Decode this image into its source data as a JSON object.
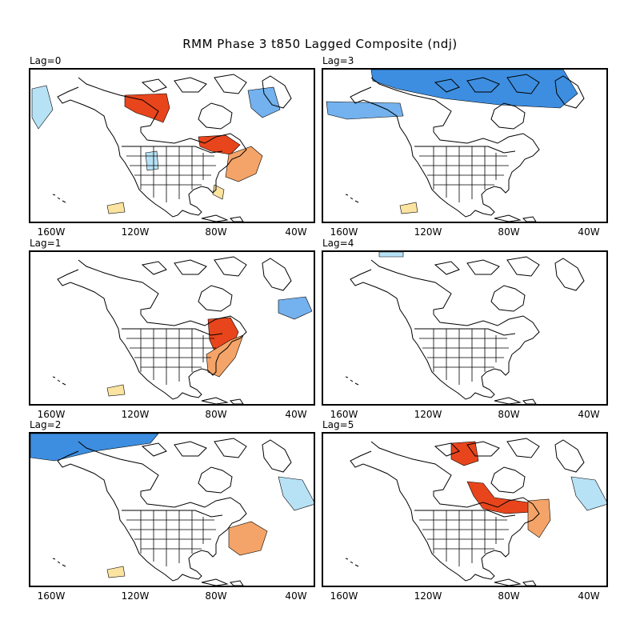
{
  "title": "RMM Phase 3 t850 Lagged Composite (ndj)",
  "x_tick_labels": [
    "160W",
    "120W",
    "80W",
    "40W"
  ],
  "colors": {
    "warm_strong": "#e8451c",
    "warm_moderate": "#f4a468",
    "warm_weak": "#fbe3a0",
    "cold_strong": "#3d8ee0",
    "cold_moderate": "#73b2ee",
    "cold_weak": "#b7e2f6"
  },
  "panels": [
    {
      "label": "Lag=0",
      "anomalies": [
        {
          "tone": "warm_strong",
          "region": "northern Canada (Northwest Territories)"
        },
        {
          "tone": "warm_strong",
          "region": "Great Lakes"
        },
        {
          "tone": "warm_moderate",
          "region": "western Atlantic off New England"
        },
        {
          "tone": "warm_weak",
          "region": "Florida / Bahamas"
        },
        {
          "tone": "warm_weak",
          "region": "eastern Pacific off Mexico"
        },
        {
          "tone": "cold_moderate",
          "region": "Hudson Bay / Labrador"
        },
        {
          "tone": "cold_weak",
          "region": "Gulf of Alaska"
        },
        {
          "tone": "cold_weak",
          "region": "interior western United States"
        }
      ]
    },
    {
      "label": "Lag=3",
      "anomalies": [
        {
          "tone": "cold_strong",
          "region": "Arctic Canada"
        },
        {
          "tone": "cold_moderate",
          "region": "Alaska"
        },
        {
          "tone": "warm_weak",
          "region": "eastern Pacific off Mexico"
        }
      ]
    },
    {
      "label": "Lag=1",
      "anomalies": [
        {
          "tone": "warm_strong",
          "region": "Great Lakes / Mid-Atlantic"
        },
        {
          "tone": "warm_moderate",
          "region": "Southeast United States"
        },
        {
          "tone": "warm_weak",
          "region": "eastern Pacific off Mexico"
        },
        {
          "tone": "cold_moderate",
          "region": "North Atlantic south of Greenland"
        }
      ]
    },
    {
      "label": "Lag=4",
      "anomalies": [
        {
          "tone": "cold_weak",
          "region": "Arctic Ocean north of Canada"
        }
      ]
    },
    {
      "label": "Lag=2",
      "anomalies": [
        {
          "tone": "cold_strong",
          "region": "Alaska / Beaufort Sea"
        },
        {
          "tone": "cold_weak",
          "region": "North Atlantic"
        },
        {
          "tone": "warm_moderate",
          "region": "western Atlantic off the US East Coast"
        },
        {
          "tone": "warm_weak",
          "region": "eastern Pacific off Mexico"
        }
      ]
    },
    {
      "label": "Lag=5",
      "anomalies": [
        {
          "tone": "warm_strong",
          "region": "northern Canada"
        },
        {
          "tone": "warm_strong",
          "region": "Great Lakes / Ontario / Quebec"
        },
        {
          "tone": "warm_moderate",
          "region": "western Atlantic off Nova Scotia"
        },
        {
          "tone": "cold_weak",
          "region": "North Atlantic"
        }
      ]
    }
  ]
}
